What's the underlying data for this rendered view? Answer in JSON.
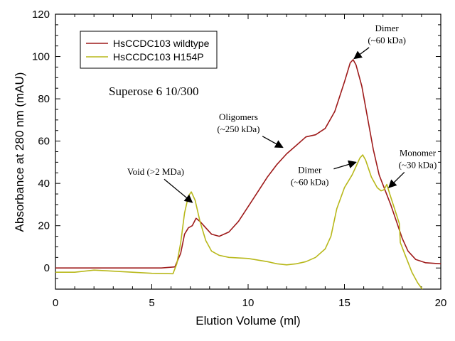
{
  "chart_data": {
    "type": "line",
    "xlabel": "Elution Volume (ml)",
    "ylabel": "Absorbance at 280 nm (mAU)",
    "xlim": [
      0,
      20
    ],
    "ylim": [
      -10,
      120
    ],
    "x_ticks": [
      0,
      5,
      10,
      15,
      20
    ],
    "y_ticks": [
      0,
      20,
      40,
      60,
      80,
      100,
      120
    ],
    "grid": false,
    "legend_position": "top-left",
    "column_label": "Superose 6 10/300",
    "series": [
      {
        "name": "HsCCDC103 wildtype",
        "color": "#9e1a1a",
        "points": [
          [
            0,
            0
          ],
          [
            2,
            0
          ],
          [
            4,
            0
          ],
          [
            5.5,
            0
          ],
          [
            6.2,
            0.5
          ],
          [
            6.5,
            7
          ],
          [
            6.7,
            16
          ],
          [
            6.9,
            19
          ],
          [
            7.1,
            20
          ],
          [
            7.3,
            23.5
          ],
          [
            7.5,
            22
          ],
          [
            7.8,
            19
          ],
          [
            8.1,
            16
          ],
          [
            8.5,
            15
          ],
          [
            9,
            17
          ],
          [
            9.5,
            22
          ],
          [
            10,
            29
          ],
          [
            10.5,
            36
          ],
          [
            11,
            43
          ],
          [
            11.5,
            49
          ],
          [
            12,
            54
          ],
          [
            12.5,
            58
          ],
          [
            13,
            62
          ],
          [
            13.5,
            63
          ],
          [
            14,
            66
          ],
          [
            14.5,
            74
          ],
          [
            15,
            88
          ],
          [
            15.3,
            97
          ],
          [
            15.45,
            98.5
          ],
          [
            15.6,
            96
          ],
          [
            15.9,
            86
          ],
          [
            16.2,
            71
          ],
          [
            16.5,
            56
          ],
          [
            16.8,
            44
          ],
          [
            17.1,
            37
          ],
          [
            17.4,
            30
          ],
          [
            17.7,
            22
          ],
          [
            18,
            14
          ],
          [
            18.3,
            8
          ],
          [
            18.7,
            4
          ],
          [
            19.2,
            2.5
          ],
          [
            20,
            2
          ]
        ]
      },
      {
        "name": "HsCCDC103 H154P",
        "color": "#b8b81a",
        "points": [
          [
            0,
            -2
          ],
          [
            1,
            -2
          ],
          [
            2,
            -1
          ],
          [
            3,
            -1.5
          ],
          [
            4,
            -2
          ],
          [
            5,
            -2.5
          ],
          [
            6.1,
            -2.7
          ],
          [
            6.3,
            2
          ],
          [
            6.5,
            12
          ],
          [
            6.7,
            26
          ],
          [
            6.9,
            34
          ],
          [
            7.05,
            36
          ],
          [
            7.25,
            32
          ],
          [
            7.5,
            22
          ],
          [
            7.8,
            13
          ],
          [
            8.1,
            8
          ],
          [
            8.5,
            6
          ],
          [
            9,
            5
          ],
          [
            10,
            4.5
          ],
          [
            11,
            3
          ],
          [
            11.5,
            2
          ],
          [
            12,
            1.5
          ],
          [
            12.5,
            2
          ],
          [
            13,
            3
          ],
          [
            13.5,
            5
          ],
          [
            14,
            9
          ],
          [
            14.3,
            15
          ],
          [
            14.6,
            28
          ],
          [
            15,
            38
          ],
          [
            15.4,
            44
          ],
          [
            15.6,
            48
          ],
          [
            15.8,
            52
          ],
          [
            15.95,
            53.5
          ],
          [
            16.1,
            51
          ],
          [
            16.4,
            43
          ],
          [
            16.7,
            38
          ],
          [
            16.9,
            36.5
          ],
          [
            17.05,
            37
          ],
          [
            17.2,
            39.5
          ],
          [
            17.35,
            35
          ],
          [
            17.6,
            28
          ],
          [
            17.85,
            21
          ],
          [
            17.9,
            12
          ],
          [
            18.2,
            5
          ],
          [
            18.5,
            -2
          ],
          [
            18.8,
            -7
          ],
          [
            19,
            -9.5
          ],
          [
            19.05,
            -10
          ]
        ]
      }
    ],
    "annotations": [
      {
        "id": "wt-dimer",
        "lines": [
          "Dimer",
          "(~60 kDa)"
        ],
        "target": [
          15.5,
          99
        ],
        "text_at": [
          17.2,
          112
        ]
      },
      {
        "id": "oligomers",
        "lines": [
          "Oligomers",
          "(~250 kDa)"
        ],
        "target": [
          11.8,
          57
        ],
        "text_at": [
          9.5,
          70
        ]
      },
      {
        "id": "void",
        "lines": [
          "Void (>2 MDa)"
        ],
        "target": [
          7.1,
          31
        ],
        "text_at": [
          5.2,
          44
        ]
      },
      {
        "id": "mut-dimer",
        "lines": [
          "Dimer",
          "(~60 kDa)"
        ],
        "target": [
          15.6,
          50
        ],
        "text_at": [
          13.2,
          45
        ]
      },
      {
        "id": "monomer",
        "lines": [
          "Monomer",
          "(~30 kDa)"
        ],
        "target": [
          17.3,
          38
        ],
        "text_at": [
          18.8,
          53
        ]
      }
    ]
  }
}
